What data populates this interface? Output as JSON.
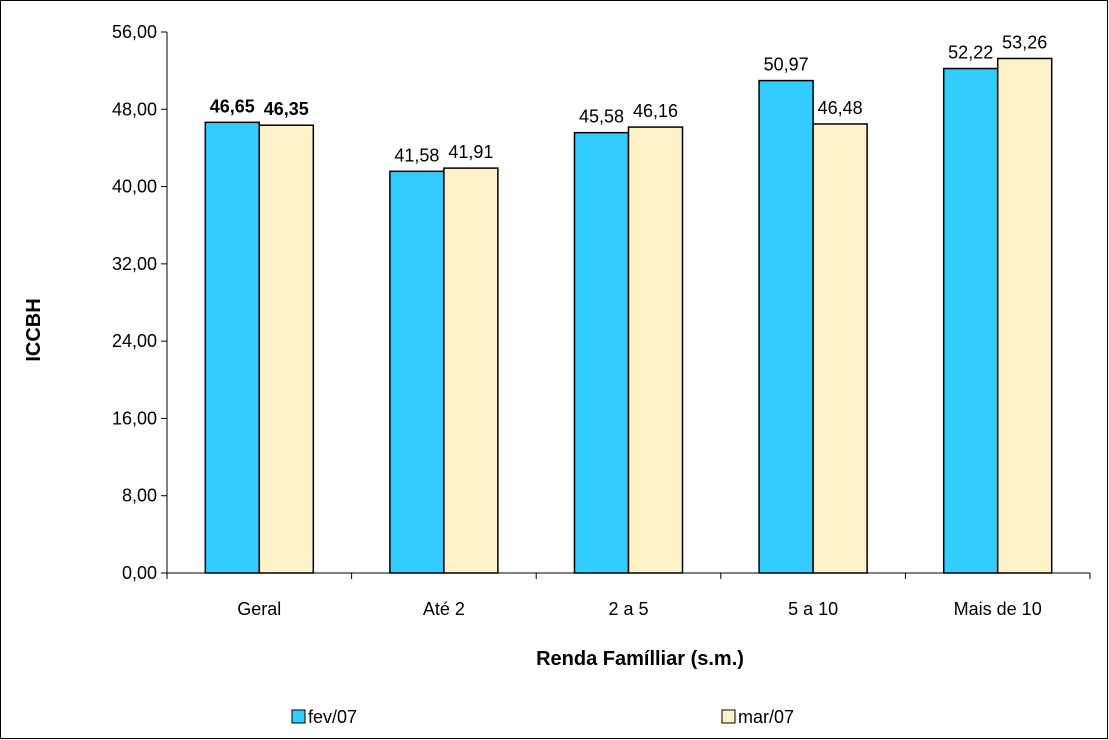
{
  "chart_data": {
    "type": "bar",
    "categories": [
      "Geral",
      "Até 2",
      "2 a 5",
      "5 a 10",
      "Mais de 10"
    ],
    "series": [
      {
        "name": "fev/07",
        "values": [
          46.65,
          41.58,
          45.58,
          50.97,
          52.22
        ],
        "labels": [
          "46,65",
          "41,58",
          "45,58",
          "50,97",
          "52,22"
        ],
        "color": "#33CCFF"
      },
      {
        "name": "mar/07",
        "values": [
          46.35,
          41.91,
          46.16,
          46.48,
          53.26
        ],
        "labels": [
          "46,35",
          "41,91",
          "46,16",
          "46,48",
          "53,26"
        ],
        "color": "#FFF2C9"
      }
    ],
    "bold_category_index": 0,
    "ylim": [
      0,
      56
    ],
    "yticks": [
      "0,00",
      "8,00",
      "16,00",
      "24,00",
      "32,00",
      "40,00",
      "48,00",
      "56,00"
    ],
    "ytick_values": [
      0,
      8,
      16,
      24,
      32,
      40,
      48,
      56
    ],
    "xlabel": "Renda Famílliar (s.m.)",
    "ylabel": "ICCBH",
    "grid": false,
    "legend_position": "bottom"
  }
}
